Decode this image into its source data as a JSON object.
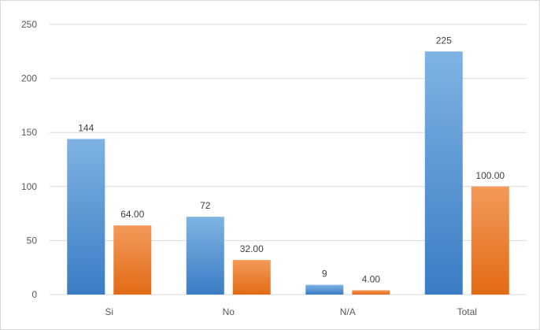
{
  "chart_data": {
    "type": "bar",
    "categories": [
      "Si",
      "No",
      "N/A",
      "Total"
    ],
    "series": [
      {
        "values": [
          144,
          72,
          9,
          225
        ],
        "labels": [
          "144",
          "72",
          "9",
          "225"
        ],
        "color": "#5b9bd5"
      },
      {
        "values": [
          64.0,
          32.0,
          4.0,
          100.0
        ],
        "labels": [
          "64.00",
          "32.00",
          "4.00",
          "100.00"
        ],
        "color": "#ed7d31"
      }
    ],
    "yticks": [
      "0",
      "50",
      "100",
      "150",
      "200",
      "250"
    ],
    "ylim": [
      0,
      250
    ],
    "grid": true,
    "legend": "none"
  }
}
